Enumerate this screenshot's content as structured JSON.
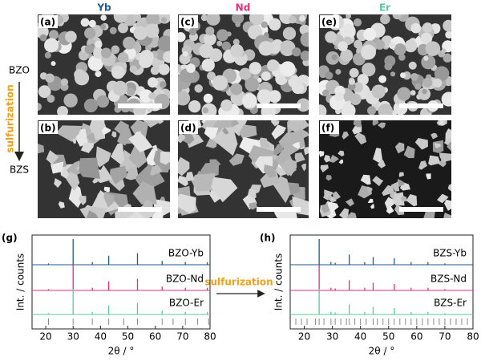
{
  "column_labels": [
    "Yb",
    "Nd",
    "Er"
  ],
  "column_colors": [
    "#1f5a8a",
    "#e0307a",
    "#5cc79a"
  ],
  "row_labels": [
    "BZO",
    "BZS"
  ],
  "arrow_label": "sulfurization",
  "arrow_color": "#f0a020",
  "panels": [
    "(a)",
    "(c)",
    "(e)",
    "(b)",
    "(d)",
    "(f)"
  ],
  "transition_label": "sulfurization",
  "chart_data": [
    {
      "type": "stick",
      "panel_label": "(g)",
      "xlabel": "2θ / °",
      "ylabel": "Int. / counts",
      "xlim": [
        15,
        80
      ],
      "xticks": [
        20,
        30,
        40,
        50,
        60,
        70,
        80
      ],
      "series": [
        {
          "name": "BZO-Yb",
          "color": "#1f5a8a",
          "x": [
            21,
            30,
            37,
            43,
            53.5,
            62.5,
            71,
            79
          ],
          "values": [
            0.05,
            1,
            0.1,
            0.35,
            0.45,
            0.15,
            0.1,
            0.1
          ]
        },
        {
          "name": "BZO-Nd",
          "color": "#e0307a",
          "x": [
            21,
            30,
            37,
            43,
            53.5,
            62.5,
            71,
            79
          ],
          "values": [
            0.05,
            1,
            0.1,
            0.35,
            0.45,
            0.15,
            0.1,
            0.1
          ]
        },
        {
          "name": "BZO-Er",
          "color": "#5cc79a",
          "x": [
            21,
            30,
            37,
            43,
            53.5,
            62.5,
            71,
            79
          ],
          "values": [
            0.05,
            1,
            0.1,
            0.35,
            0.45,
            0.15,
            0.1,
            0.1
          ]
        }
      ],
      "reference_peaks": [
        21,
        30,
        37,
        43,
        48.5,
        53.5,
        62.5,
        66.5,
        71,
        75.5,
        79.5
      ],
      "reference_color": "#888888"
    },
    {
      "type": "stick",
      "panel_label": "(h)",
      "xlabel": "2θ / °",
      "ylabel": "Int. / counts",
      "xlim": [
        15,
        80
      ],
      "xticks": [
        20,
        30,
        40,
        50,
        60,
        70,
        80
      ],
      "series": [
        {
          "name": "BZS-Yb",
          "color": "#1f5a8a",
          "x": [
            25.3,
            29.5,
            31,
            36,
            41.5,
            44.5,
            52,
            58,
            64,
            70
          ],
          "values": [
            1,
            0.1,
            0.08,
            0.4,
            0.1,
            0.3,
            0.25,
            0.1,
            0.1,
            0.05
          ]
        },
        {
          "name": "BZS-Nd",
          "color": "#e0307a",
          "x": [
            25.3,
            29.5,
            31,
            36,
            41.5,
            44.5,
            52,
            58,
            64,
            70
          ],
          "values": [
            1,
            0.1,
            0.08,
            0.4,
            0.1,
            0.3,
            0.25,
            0.1,
            0.1,
            0.05
          ]
        },
        {
          "name": "BZS-Er",
          "color": "#5cc79a",
          "x": [
            25.3,
            29.5,
            31,
            36,
            41.5,
            44.5,
            52,
            58,
            64,
            70
          ],
          "values": [
            1,
            0.1,
            0.08,
            0.4,
            0.1,
            0.3,
            0.25,
            0.1,
            0.1,
            0.05
          ]
        }
      ],
      "reference_peaks": [
        17,
        19,
        21,
        24,
        25.3,
        27,
        29.5,
        31,
        33,
        35,
        36,
        38,
        40,
        42,
        44.5,
        46,
        48,
        50,
        52,
        54,
        56,
        58,
        60,
        62,
        64,
        66,
        68,
        70,
        72,
        74,
        76,
        78
      ],
      "reference_color": "#888888"
    }
  ]
}
